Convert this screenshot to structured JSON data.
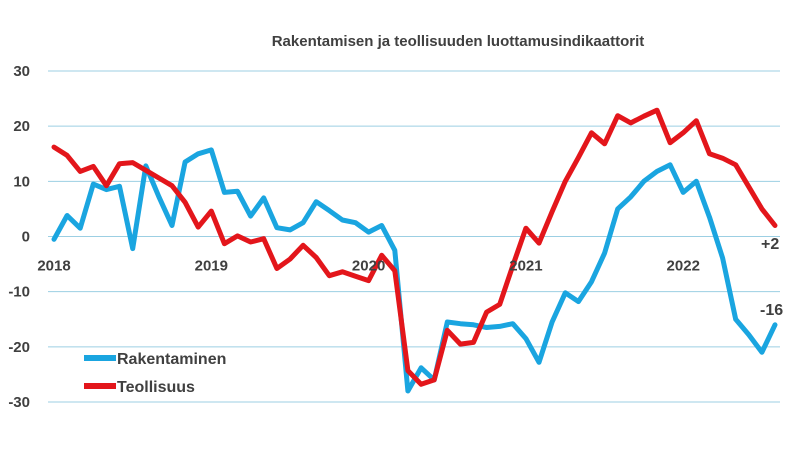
{
  "chart_data": {
    "type": "line",
    "title": "Rakentamisen ja teollisuuden luottamusindikaattorit",
    "xlabel": "",
    "ylabel": "",
    "ylim": [
      -30,
      30
    ],
    "yticks": [
      30,
      20,
      10,
      0,
      -10,
      -20,
      -30
    ],
    "x_start": "2018-01",
    "x_end": "2022-12",
    "xtick_labels": [
      "2018",
      "2019",
      "2020",
      "2021",
      "2022"
    ],
    "grid": true,
    "legend_position": "bottom-left",
    "series": [
      {
        "name": "Rakentaminen",
        "color": "#1aa5e0",
        "values": [
          -0.5,
          3.8,
          1.5,
          9.5,
          8.5,
          9.1,
          -2.2,
          12.8,
          7.2,
          2.0,
          13.5,
          15.0,
          15.7,
          8.0,
          8.2,
          3.7,
          7.0,
          1.6,
          1.2,
          2.5,
          6.3,
          4.7,
          3.0,
          2.5,
          0.8,
          2.0,
          -2.5,
          -28.0,
          -23.8,
          -26.0,
          -15.5,
          -15.8,
          -16.0,
          -16.5,
          -16.3,
          -15.8,
          -18.5,
          -22.8,
          -15.5,
          -10.2,
          -11.8,
          -8.2,
          -3.0,
          5.0,
          7.2,
          10.0,
          11.8,
          13.0,
          8.0,
          10.0,
          3.5,
          -3.9,
          -15.0,
          -17.8,
          -21.0,
          -16.0
        ],
        "end_label": "-16"
      },
      {
        "name": "Teollisuus",
        "color": "#e3161b",
        "values": [
          16.2,
          14.7,
          11.8,
          12.7,
          9.2,
          13.2,
          13.4,
          12.0,
          10.6,
          9.2,
          6.2,
          1.7,
          4.6,
          -1.3,
          0.1,
          -1.0,
          -0.4,
          -5.8,
          -4.1,
          -1.6,
          -3.8,
          -7.1,
          -6.4,
          -7.2,
          -8.0,
          -3.4,
          -6.2,
          -24.3,
          -26.8,
          -26.0,
          -17.0,
          -19.5,
          -19.2,
          -13.7,
          -12.3,
          -5.3,
          1.5,
          -1.2,
          4.5,
          10.0,
          14.3,
          18.8,
          16.8,
          21.9,
          20.6,
          21.8,
          22.9,
          17.0,
          18.8,
          21.0,
          15.0,
          14.2,
          13.0,
          9.0,
          5.0,
          2.0
        ],
        "end_label": "+2"
      }
    ]
  }
}
